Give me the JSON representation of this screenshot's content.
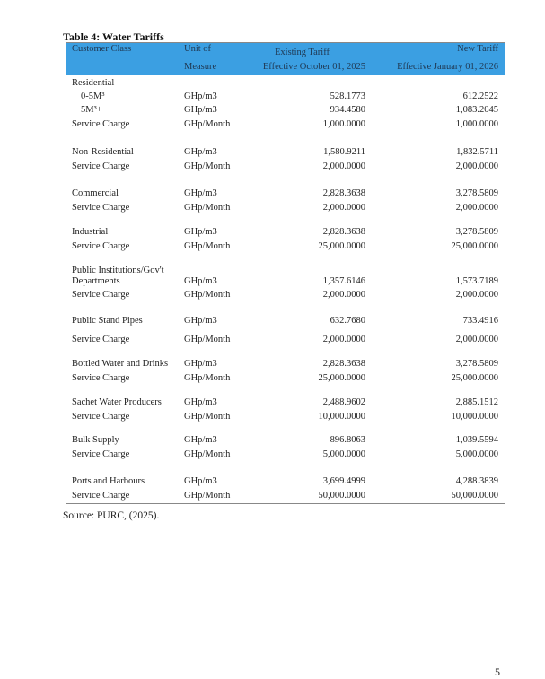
{
  "caption": "Table 4: Water Tariffs",
  "header": {
    "customer_class": "Customer Class",
    "unit_line1": "Unit of",
    "unit_line2": "Measure",
    "existing_line1": "Existing Tariff",
    "existing_line2": "Effective October 01, 2025",
    "new_line1": "New Tariff",
    "new_line2": "Effective January 01, 2026"
  },
  "header_color": "#3b9fe2",
  "rows": [
    {
      "name": "Residential",
      "unit": "",
      "existing": "",
      "new": ""
    },
    {
      "name": "0-5M³",
      "unit": "GHp/m3",
      "existing": "528.1773",
      "new": "612.2522",
      "indent": true
    },
    {
      "name": "5M³+",
      "unit": "GHp/m3",
      "existing": "934.4580",
      "new": "1,083.2045",
      "indent": true
    },
    {
      "name": "Service Charge",
      "unit": "GHp/Month",
      "existing": "1,000.0000",
      "new": "1,000.0000"
    },
    {
      "name": "Non-Residential",
      "unit": "GHp/m3",
      "existing": "1,580.9211",
      "new": "1,832.5711"
    },
    {
      "name": "Service Charge",
      "unit": "GHp/Month",
      "existing": "2,000.0000",
      "new": "2,000.0000"
    },
    {
      "name": "Commercial",
      "unit": "GHp/m3",
      "existing": "2,828.3638",
      "new": "3,278.5809"
    },
    {
      "name": "Service Charge",
      "unit": "GHp/Month",
      "existing": "2,000.0000",
      "new": "2,000.0000"
    },
    {
      "name": "Industrial",
      "unit": "GHp/m3",
      "existing": "2,828.3638",
      "new": "3,278.5809"
    },
    {
      "name": "Service Charge",
      "unit": "GHp/Month",
      "existing": "25,000.0000",
      "new": "25,000.0000"
    },
    {
      "name": "Public Institutions/Gov't",
      "unit": "",
      "existing": "",
      "new": ""
    },
    {
      "name": "Departments",
      "unit": "GHp/m3",
      "existing": "1,357.6146",
      "new": "1,573.7189"
    },
    {
      "name": "Service Charge",
      "unit": "GHp/Month",
      "existing": "2,000.0000",
      "new": "2,000.0000"
    },
    {
      "name": "Public Stand Pipes",
      "unit": "GHp/m3",
      "existing": "632.7680",
      "new": "733.4916"
    },
    {
      "name": "Service Charge",
      "unit": "GHp/Month",
      "existing": "2,000.0000",
      "new": "2,000.0000"
    },
    {
      "name": "Bottled Water and Drinks",
      "unit": "GHp/m3",
      "existing": "2,828.3638",
      "new": "3,278.5809"
    },
    {
      "name": "Service Charge",
      "unit": "GHp/Month",
      "existing": "25,000.0000",
      "new": "25,000.0000"
    },
    {
      "name": "Sachet Water Producers",
      "unit": "GHp/m3",
      "existing": "2,488.9602",
      "new": "2,885.1512"
    },
    {
      "name": "Service Charge",
      "unit": "GHp/Month",
      "existing": "10,000.0000",
      "new": "10,000.0000"
    },
    {
      "name": "Bulk Supply",
      "unit": "GHp/m3",
      "existing": "896.8063",
      "new": "1,039.5594"
    },
    {
      "name": "Service Charge",
      "unit": "GHp/Month",
      "existing": "5,000.0000",
      "new": "5,000.0000"
    },
    {
      "name": "Ports and Harbours",
      "unit": "GHp/m3",
      "existing": "3,699.4999",
      "new": "4,288.3839"
    },
    {
      "name": "Service Charge",
      "unit": "GHp/Month",
      "existing": "50,000.0000",
      "new": "50,000.0000"
    }
  ],
  "source": "Source: PURC, (2025).",
  "page_number": "5"
}
